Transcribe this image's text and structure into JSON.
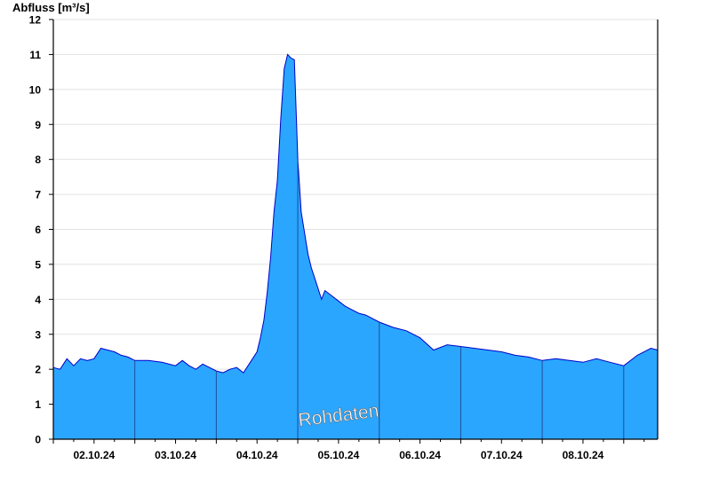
{
  "chart_data": {
    "type": "area",
    "ylabel": "Abfluss [m³/s]",
    "watermark": "Rohdaten",
    "ylim": [
      0,
      12
    ],
    "yticks": [
      0,
      1,
      2,
      3,
      4,
      5,
      6,
      7,
      8,
      9,
      10,
      11,
      12
    ],
    "xlim": [
      "2024-10-01 12:00",
      "2024-10-08 22:00"
    ],
    "day_separators": [
      "2024-10-02 12:00",
      "2024-10-03 12:00",
      "2024-10-04 12:00",
      "2024-10-05 12:00",
      "2024-10-06 12:00",
      "2024-10-07 12:00",
      "2024-10-08 12:00"
    ],
    "x_tick_labels": [
      {
        "label": "02.10.24",
        "date": "2024-10-02 00:00"
      },
      {
        "label": "03.10.24",
        "date": "2024-10-03 00:00"
      },
      {
        "label": "04.10.24",
        "date": "2024-10-04 00:00"
      },
      {
        "label": "05.10.24",
        "date": "2024-10-05 00:00"
      },
      {
        "label": "06.10.24",
        "date": "2024-10-06 00:00"
      },
      {
        "label": "07.10.24",
        "date": "2024-10-07 00:00"
      },
      {
        "label": "08.10.24",
        "date": "2024-10-08 00:00"
      }
    ],
    "grid": true,
    "colors": {
      "fill": "#2aa6ff",
      "line": "#0000c8",
      "grid": "#e2e2e2",
      "separator": "#1f4e9a"
    },
    "series": [
      {
        "x": [
          "2024-10-01 12:00",
          "2024-10-01 14:00",
          "2024-10-01 16:00",
          "2024-10-01 18:00",
          "2024-10-01 20:00",
          "2024-10-01 22:00",
          "2024-10-02 00:00",
          "2024-10-02 02:00",
          "2024-10-02 04:00",
          "2024-10-02 06:00",
          "2024-10-02 08:00",
          "2024-10-02 10:00",
          "2024-10-02 12:00",
          "2024-10-02 16:00",
          "2024-10-02 20:00",
          "2024-10-03 00:00",
          "2024-10-03 02:00",
          "2024-10-03 04:00",
          "2024-10-03 06:00",
          "2024-10-03 08:00",
          "2024-10-03 10:00",
          "2024-10-03 12:00",
          "2024-10-03 14:00",
          "2024-10-03 16:00",
          "2024-10-03 18:00",
          "2024-10-03 20:00",
          "2024-10-03 22:00",
          "2024-10-04 00:00",
          "2024-10-04 01:00",
          "2024-10-04 02:00",
          "2024-10-04 03:00",
          "2024-10-04 04:00",
          "2024-10-04 05:00",
          "2024-10-04 06:00",
          "2024-10-04 07:00",
          "2024-10-04 08:00",
          "2024-10-04 09:00",
          "2024-10-04 10:00",
          "2024-10-04 11:00",
          "2024-10-04 12:00",
          "2024-10-04 13:00",
          "2024-10-04 14:00",
          "2024-10-04 15:00",
          "2024-10-04 16:00",
          "2024-10-04 17:00",
          "2024-10-04 18:00",
          "2024-10-04 19:00",
          "2024-10-04 20:00",
          "2024-10-04 22:00",
          "2024-10-05 00:00",
          "2024-10-05 02:00",
          "2024-10-05 04:00",
          "2024-10-05 06:00",
          "2024-10-05 08:00",
          "2024-10-05 12:00",
          "2024-10-05 16:00",
          "2024-10-05 20:00",
          "2024-10-06 00:00",
          "2024-10-06 04:00",
          "2024-10-06 08:00",
          "2024-10-06 12:00",
          "2024-10-06 16:00",
          "2024-10-06 20:00",
          "2024-10-07 00:00",
          "2024-10-07 04:00",
          "2024-10-07 08:00",
          "2024-10-07 12:00",
          "2024-10-07 16:00",
          "2024-10-08 00:00",
          "2024-10-08 04:00",
          "2024-10-08 08:00",
          "2024-10-08 12:00",
          "2024-10-08 16:00",
          "2024-10-08 20:00",
          "2024-10-08 22:00"
        ],
        "y": [
          2.05,
          2.0,
          2.3,
          2.1,
          2.3,
          2.25,
          2.3,
          2.6,
          2.55,
          2.5,
          2.4,
          2.35,
          2.25,
          2.25,
          2.2,
          2.1,
          2.25,
          2.1,
          2.0,
          2.15,
          2.05,
          1.95,
          1.9,
          2.0,
          2.05,
          1.9,
          2.2,
          2.5,
          2.9,
          3.4,
          4.2,
          5.2,
          6.5,
          7.4,
          9.2,
          10.6,
          11.0,
          10.9,
          10.85,
          8.0,
          6.5,
          5.9,
          5.3,
          4.9,
          4.6,
          4.3,
          4.0,
          4.25,
          4.1,
          3.95,
          3.8,
          3.7,
          3.6,
          3.55,
          3.35,
          3.2,
          3.1,
          2.9,
          2.55,
          2.7,
          2.65,
          2.6,
          2.55,
          2.5,
          2.4,
          2.35,
          2.25,
          2.3,
          2.2,
          2.3,
          2.2,
          2.1,
          2.4,
          2.6,
          2.55
        ]
      }
    ]
  }
}
